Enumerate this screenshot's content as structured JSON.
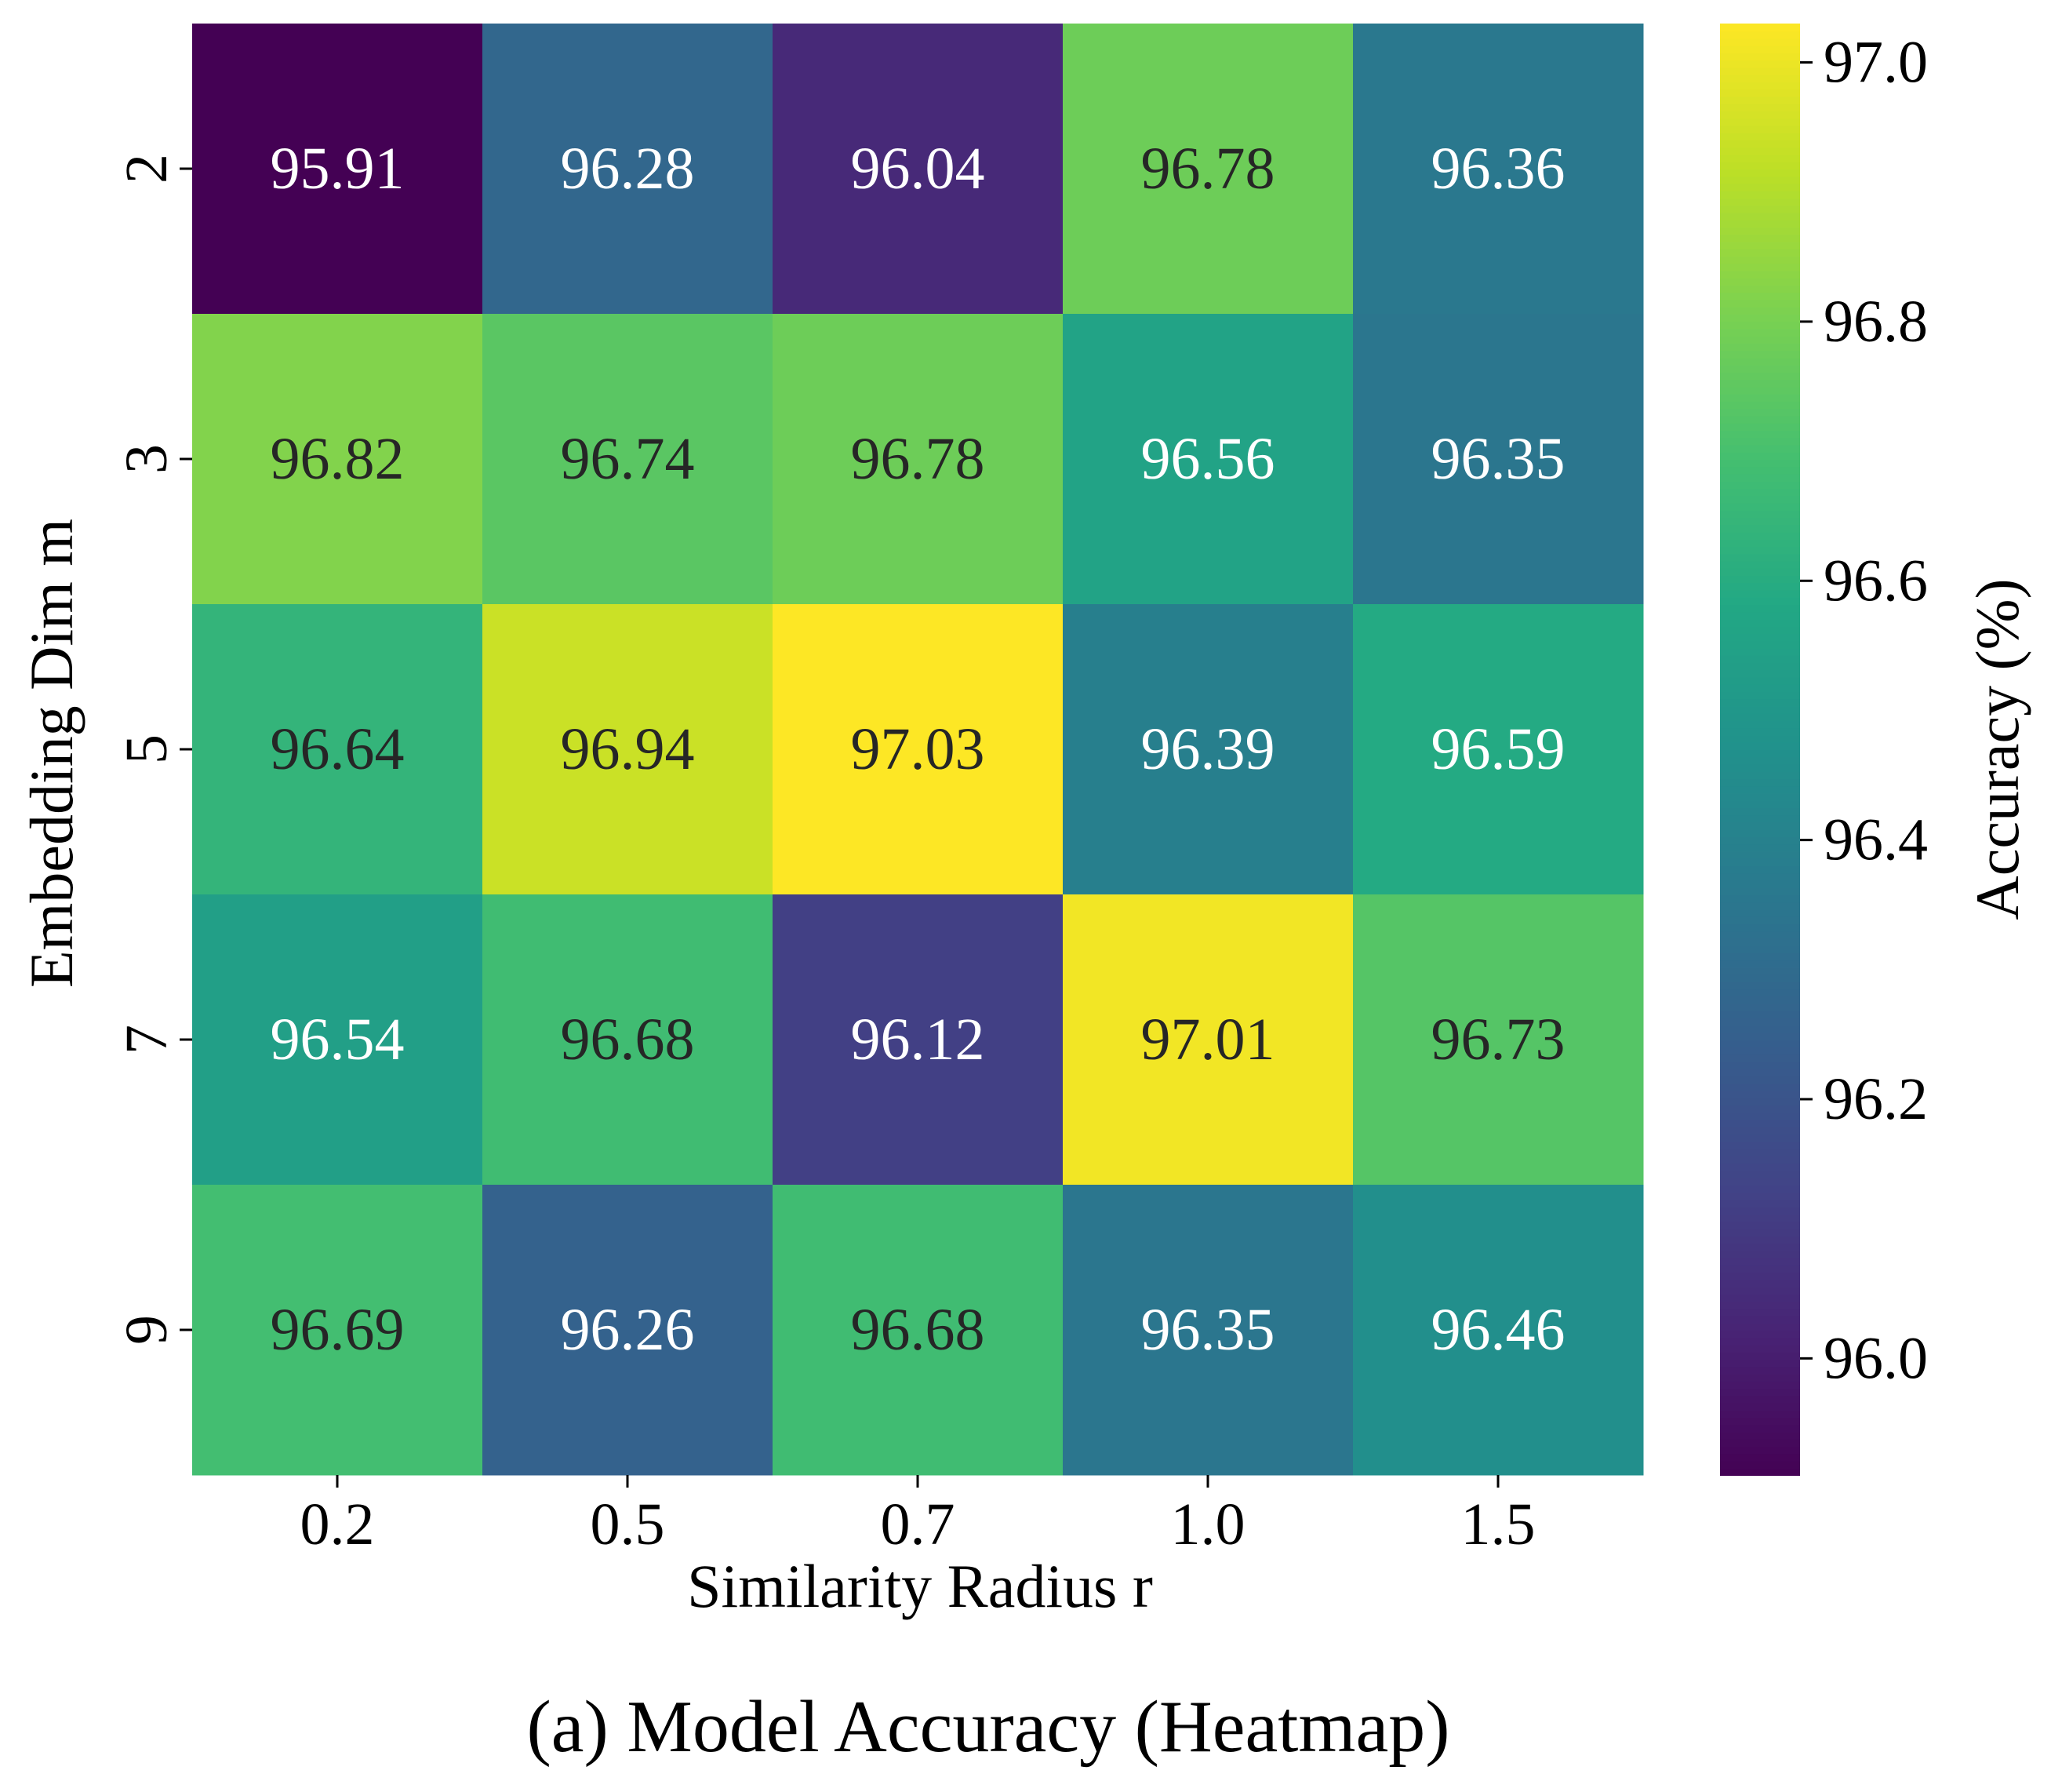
{
  "chart_data": {
    "type": "heatmap",
    "caption": "(a) Model Accuracy (Heatmap)",
    "xlabel": "Similarity Radius r",
    "ylabel": "Embedding Dim m",
    "colorbar_label": "Accuracy (%)",
    "x_categories": [
      "0.2",
      "0.5",
      "0.7",
      "1.0",
      "1.5"
    ],
    "y_categories": [
      "2",
      "3",
      "5",
      "7",
      "9"
    ],
    "values": [
      [
        95.91,
        96.28,
        96.04,
        96.78,
        96.36
      ],
      [
        96.82,
        96.74,
        96.78,
        96.56,
        96.35
      ],
      [
        96.64,
        96.94,
        97.03,
        96.39,
        96.59
      ],
      [
        96.54,
        96.68,
        96.12,
        97.01,
        96.73
      ],
      [
        96.69,
        96.26,
        96.68,
        96.35,
        96.46
      ]
    ],
    "value_format": "2 decimals",
    "colormap": "viridis",
    "vmin": 95.91,
    "vmax": 97.03,
    "colorbar_ticks": [
      "96.0",
      "96.2",
      "96.4",
      "96.6",
      "96.8",
      "97.0"
    ],
    "colors": {
      "text_light": "#ffffff",
      "text_dark": "#262626",
      "axis": "#000000"
    }
  }
}
